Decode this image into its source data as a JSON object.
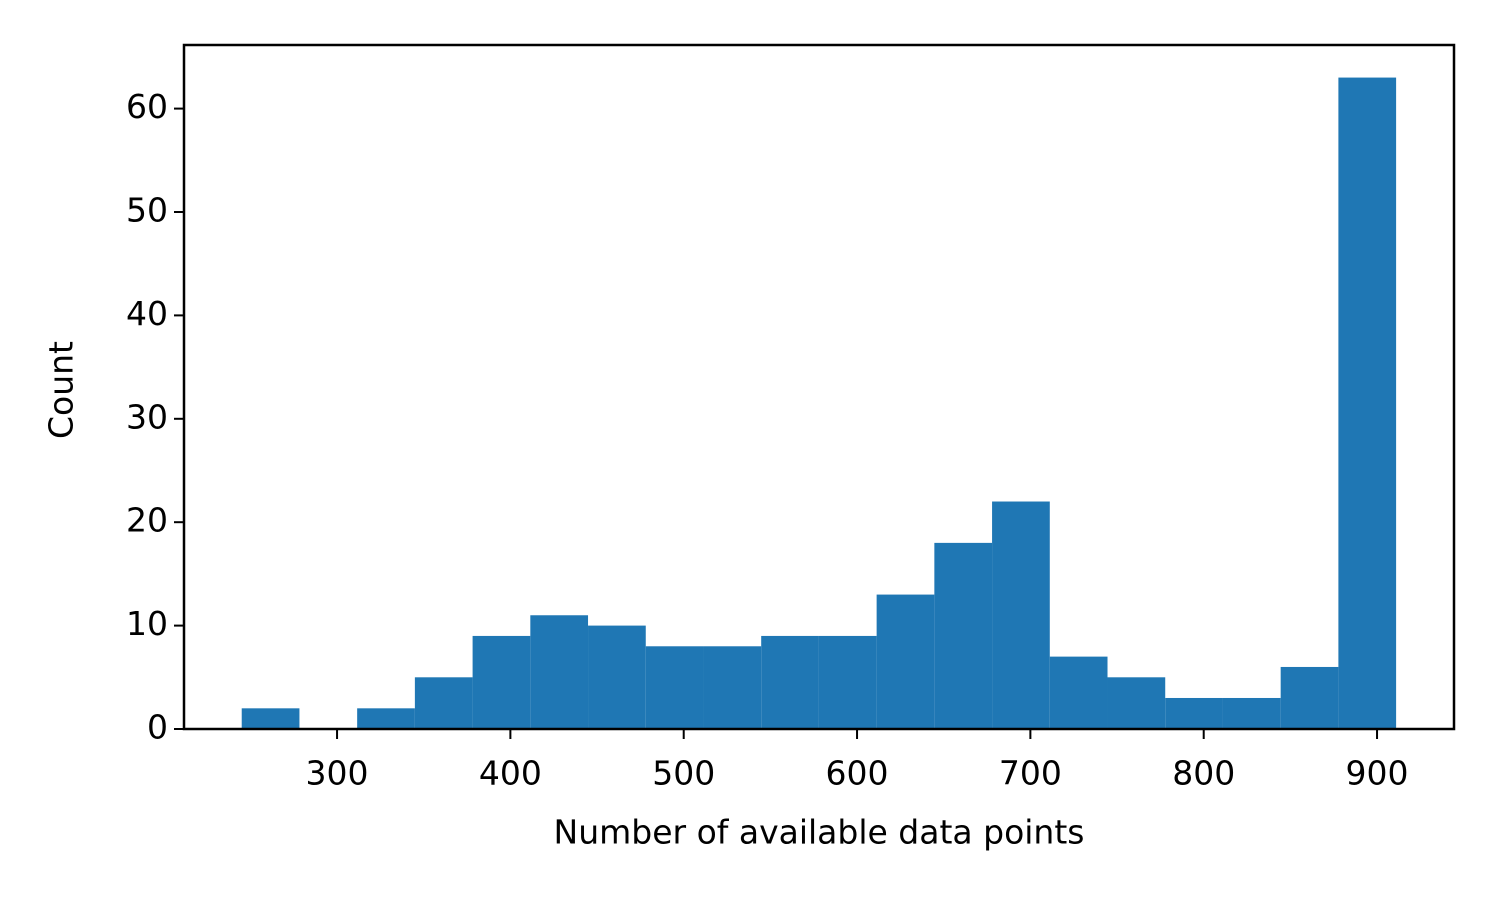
{
  "chart_data": {
    "type": "histogram",
    "xlabel": "Number of available data points",
    "ylabel": "Count",
    "bins": [
      245,
      278.3,
      311.6,
      344.9,
      378.2,
      411.5,
      444.8,
      478.1,
      511.4,
      544.7,
      578,
      611.3,
      644.6,
      677.9,
      711.2,
      744.5,
      777.8,
      811.1,
      844.4,
      877.7,
      911
    ],
    "values": [
      2,
      0,
      2,
      5,
      9,
      11,
      10,
      8,
      8,
      9,
      9,
      13,
      18,
      22,
      7,
      5,
      3,
      3,
      6,
      63
    ],
    "color": "#1f77b4",
    "xlim": [
      211.7,
      944.4
    ],
    "xticks": [
      300,
      400,
      500,
      600,
      700,
      800,
      900
    ],
    "ylim": [
      0,
      66.15
    ],
    "yticks": [
      0,
      10,
      20,
      30,
      40,
      50,
      60
    ]
  }
}
